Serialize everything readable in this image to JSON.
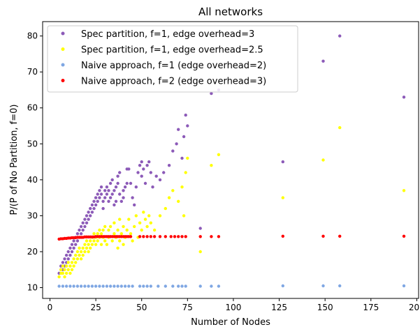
{
  "chart_data": {
    "type": "scatter",
    "title": "All networks",
    "xlabel": "Number of Nodes",
    "ylabel": "P/(P of No Partition, f=0)",
    "xlim": [
      -4,
      201
    ],
    "ylim": [
      7,
      84
    ],
    "xticks": [
      0,
      25,
      50,
      75,
      100,
      125,
      150,
      175,
      200
    ],
    "yticks": [
      10,
      20,
      30,
      40,
      50,
      60,
      70,
      80
    ],
    "grid": false,
    "legend_position": "upper-left",
    "series": [
      {
        "name": "Spec partition, f=1, edge overhead=3",
        "color": "#8c5ab8",
        "points": [
          [
            5,
            14
          ],
          [
            6,
            15
          ],
          [
            6,
            16
          ],
          [
            7,
            17
          ],
          [
            7,
            15
          ],
          [
            8,
            18
          ],
          [
            8,
            16
          ],
          [
            9,
            19
          ],
          [
            9,
            17
          ],
          [
            10,
            18
          ],
          [
            10,
            20
          ],
          [
            11,
            19
          ],
          [
            11,
            21
          ],
          [
            12,
            22
          ],
          [
            12,
            20
          ],
          [
            13,
            21
          ],
          [
            13,
            23
          ],
          [
            14,
            24
          ],
          [
            14,
            22
          ],
          [
            15,
            23
          ],
          [
            15,
            25
          ],
          [
            16,
            26
          ],
          [
            16,
            24
          ],
          [
            17,
            25
          ],
          [
            17,
            27
          ],
          [
            18,
            28
          ],
          [
            18,
            26
          ],
          [
            19,
            29
          ],
          [
            19,
            27
          ],
          [
            20,
            30
          ],
          [
            20,
            28
          ],
          [
            21,
            31
          ],
          [
            21,
            29
          ],
          [
            22,
            32
          ],
          [
            22,
            30
          ],
          [
            23,
            31
          ],
          [
            23,
            33
          ],
          [
            24,
            34
          ],
          [
            24,
            32
          ],
          [
            25,
            35
          ],
          [
            25,
            33
          ],
          [
            26,
            34
          ],
          [
            26,
            36
          ],
          [
            27,
            37
          ],
          [
            27,
            35
          ],
          [
            28,
            36
          ],
          [
            28,
            38
          ],
          [
            29,
            34
          ],
          [
            29,
            32
          ],
          [
            30,
            37
          ],
          [
            30,
            35
          ],
          [
            31,
            38
          ],
          [
            31,
            36
          ],
          [
            32,
            37
          ],
          [
            32,
            34
          ],
          [
            33,
            35
          ],
          [
            33,
            39
          ],
          [
            34,
            40
          ],
          [
            34,
            36
          ],
          [
            35,
            37
          ],
          [
            35,
            33
          ],
          [
            36,
            34
          ],
          [
            36,
            38
          ],
          [
            37,
            39
          ],
          [
            37,
            41
          ],
          [
            38,
            42
          ],
          [
            38,
            36
          ],
          [
            39,
            34
          ],
          [
            40,
            35
          ],
          [
            40,
            37
          ],
          [
            41,
            38
          ],
          [
            42,
            39
          ],
          [
            42,
            43
          ],
          [
            43,
            43
          ],
          [
            44,
            39
          ],
          [
            45,
            35
          ],
          [
            46,
            33
          ],
          [
            47,
            38
          ],
          [
            48,
            42
          ],
          [
            49,
            44
          ],
          [
            50,
            41
          ],
          [
            50,
            45
          ],
          [
            51,
            43
          ],
          [
            52,
            39
          ],
          [
            53,
            44
          ],
          [
            54,
            45
          ],
          [
            55,
            42
          ],
          [
            56,
            38
          ],
          [
            58,
            41
          ],
          [
            60,
            40
          ],
          [
            62,
            42
          ],
          [
            65,
            44
          ],
          [
            67,
            48
          ],
          [
            69,
            50
          ],
          [
            70,
            54
          ],
          [
            72,
            46
          ],
          [
            73,
            52
          ],
          [
            74,
            58
          ],
          [
            75,
            55
          ],
          [
            82,
            26.5
          ],
          [
            88,
            64
          ],
          [
            92,
            65
          ],
          [
            127,
            45
          ],
          [
            149,
            73
          ],
          [
            158,
            80
          ],
          [
            193,
            63
          ]
        ]
      },
      {
        "name": "Spec partition, f=1, edge overhead=2.5",
        "color": "#ffff00",
        "points": [
          [
            5,
            13
          ],
          [
            6,
            14
          ],
          [
            6,
            15
          ],
          [
            7,
            14
          ],
          [
            7,
            16
          ],
          [
            8,
            13
          ],
          [
            8,
            15
          ],
          [
            9,
            14
          ],
          [
            9,
            16
          ],
          [
            10,
            15
          ],
          [
            10,
            17
          ],
          [
            11,
            14
          ],
          [
            11,
            16
          ],
          [
            12,
            15
          ],
          [
            12,
            17
          ],
          [
            13,
            16
          ],
          [
            13,
            18
          ],
          [
            14,
            17
          ],
          [
            14,
            19
          ],
          [
            15,
            18
          ],
          [
            15,
            20
          ],
          [
            16,
            19
          ],
          [
            16,
            21
          ],
          [
            17,
            20
          ],
          [
            17,
            18
          ],
          [
            18,
            21
          ],
          [
            18,
            19
          ],
          [
            19,
            20
          ],
          [
            19,
            22
          ],
          [
            20,
            21
          ],
          [
            20,
            23
          ],
          [
            21,
            22
          ],
          [
            21,
            20
          ],
          [
            22,
            23
          ],
          [
            22,
            21
          ],
          [
            23,
            22
          ],
          [
            23,
            24
          ],
          [
            24,
            23
          ],
          [
            24,
            25
          ],
          [
            25,
            24
          ],
          [
            25,
            22
          ],
          [
            26,
            25
          ],
          [
            26,
            23
          ],
          [
            27,
            24
          ],
          [
            27,
            26
          ],
          [
            28,
            25
          ],
          [
            28,
            22
          ],
          [
            29,
            26
          ],
          [
            29,
            24
          ],
          [
            30,
            23
          ],
          [
            30,
            27
          ],
          [
            31,
            22
          ],
          [
            32,
            26
          ],
          [
            32,
            24
          ],
          [
            33,
            27
          ],
          [
            34,
            23
          ],
          [
            35,
            25
          ],
          [
            35,
            28
          ],
          [
            36,
            24
          ],
          [
            37,
            21
          ],
          [
            37,
            26
          ],
          [
            38,
            29
          ],
          [
            38,
            23
          ],
          [
            39,
            25
          ],
          [
            40,
            22
          ],
          [
            40,
            27
          ],
          [
            41,
            24
          ],
          [
            42,
            26
          ],
          [
            43,
            29
          ],
          [
            44,
            25
          ],
          [
            45,
            23
          ],
          [
            46,
            27
          ],
          [
            47,
            30
          ],
          [
            48,
            24
          ],
          [
            49,
            28
          ],
          [
            50,
            26
          ],
          [
            51,
            31
          ],
          [
            52,
            29
          ],
          [
            53,
            27
          ],
          [
            54,
            30
          ],
          [
            55,
            28
          ],
          [
            57,
            26
          ],
          [
            60,
            30
          ],
          [
            63,
            32
          ],
          [
            65,
            35
          ],
          [
            67,
            37
          ],
          [
            70,
            34
          ],
          [
            72,
            38
          ],
          [
            73,
            30
          ],
          [
            74,
            42
          ],
          [
            75,
            46
          ],
          [
            82,
            20
          ],
          [
            88,
            44
          ],
          [
            92,
            47
          ],
          [
            127,
            35
          ],
          [
            149,
            45.5
          ],
          [
            158,
            54.5
          ],
          [
            193,
            37
          ]
        ]
      },
      {
        "name": "Naive approach, f=1 (edge overhead=2)",
        "color": "#7fa7e3",
        "points": [
          [
            5,
            10.4
          ],
          [
            7,
            10.4
          ],
          [
            9,
            10.4
          ],
          [
            11,
            10.4
          ],
          [
            13,
            10.4
          ],
          [
            15,
            10.4
          ],
          [
            17,
            10.4
          ],
          [
            19,
            10.4
          ],
          [
            21,
            10.4
          ],
          [
            23,
            10.4
          ],
          [
            25,
            10.4
          ],
          [
            27,
            10.4
          ],
          [
            29,
            10.4
          ],
          [
            31,
            10.4
          ],
          [
            33,
            10.4
          ],
          [
            35,
            10.4
          ],
          [
            37,
            10.4
          ],
          [
            39,
            10.4
          ],
          [
            41,
            10.4
          ],
          [
            43,
            10.4
          ],
          [
            45,
            10.4
          ],
          [
            49,
            10.4
          ],
          [
            51,
            10.4
          ],
          [
            53,
            10.4
          ],
          [
            55,
            10.4
          ],
          [
            59,
            10.4
          ],
          [
            63,
            10.4
          ],
          [
            67,
            10.4
          ],
          [
            70,
            10.4
          ],
          [
            72,
            10.4
          ],
          [
            74,
            10.4
          ],
          [
            82,
            10.4
          ],
          [
            88,
            10.4
          ],
          [
            92,
            10.4
          ],
          [
            127,
            10.5
          ],
          [
            149,
            10.5
          ],
          [
            158,
            10.5
          ],
          [
            193,
            10.5
          ]
        ]
      },
      {
        "name": "Naive approach, f=2 (edge overhead=3)",
        "color": "#ff0000",
        "points": [
          [
            5,
            23.5
          ],
          [
            6,
            23.6
          ],
          [
            7,
            23.6
          ],
          [
            8,
            23.7
          ],
          [
            9,
            23.7
          ],
          [
            10,
            23.8
          ],
          [
            11,
            23.8
          ],
          [
            12,
            23.9
          ],
          [
            13,
            23.9
          ],
          [
            14,
            23.9
          ],
          [
            15,
            24.0
          ],
          [
            16,
            24.0
          ],
          [
            17,
            24.0
          ],
          [
            18,
            24.0
          ],
          [
            19,
            24.1
          ],
          [
            20,
            24.1
          ],
          [
            21,
            24.1
          ],
          [
            22,
            24.1
          ],
          [
            23,
            24.1
          ],
          [
            24,
            24.1
          ],
          [
            25,
            24.2
          ],
          [
            26,
            24.2
          ],
          [
            27,
            24.2
          ],
          [
            28,
            24.2
          ],
          [
            29,
            24.2
          ],
          [
            30,
            24.2
          ],
          [
            31,
            24.2
          ],
          [
            32,
            24.2
          ],
          [
            33,
            24.2
          ],
          [
            34,
            24.2
          ],
          [
            35,
            24.2
          ],
          [
            36,
            24.2
          ],
          [
            37,
            24.2
          ],
          [
            38,
            24.2
          ],
          [
            39,
            24.2
          ],
          [
            40,
            24.2
          ],
          [
            41,
            24.2
          ],
          [
            42,
            24.2
          ],
          [
            43,
            24.2
          ],
          [
            44,
            24.2
          ],
          [
            49,
            24.2
          ],
          [
            51,
            24.2
          ],
          [
            53,
            24.2
          ],
          [
            55,
            24.2
          ],
          [
            57,
            24.2
          ],
          [
            60,
            24.2
          ],
          [
            63,
            24.2
          ],
          [
            66,
            24.2
          ],
          [
            68,
            24.2
          ],
          [
            70,
            24.2
          ],
          [
            72,
            24.2
          ],
          [
            74,
            24.2
          ],
          [
            82,
            24.2
          ],
          [
            88,
            24.2
          ],
          [
            92,
            24.2
          ],
          [
            127,
            24.3
          ],
          [
            149,
            24.3
          ],
          [
            158,
            24.3
          ],
          [
            193,
            24.3
          ]
        ]
      }
    ]
  }
}
